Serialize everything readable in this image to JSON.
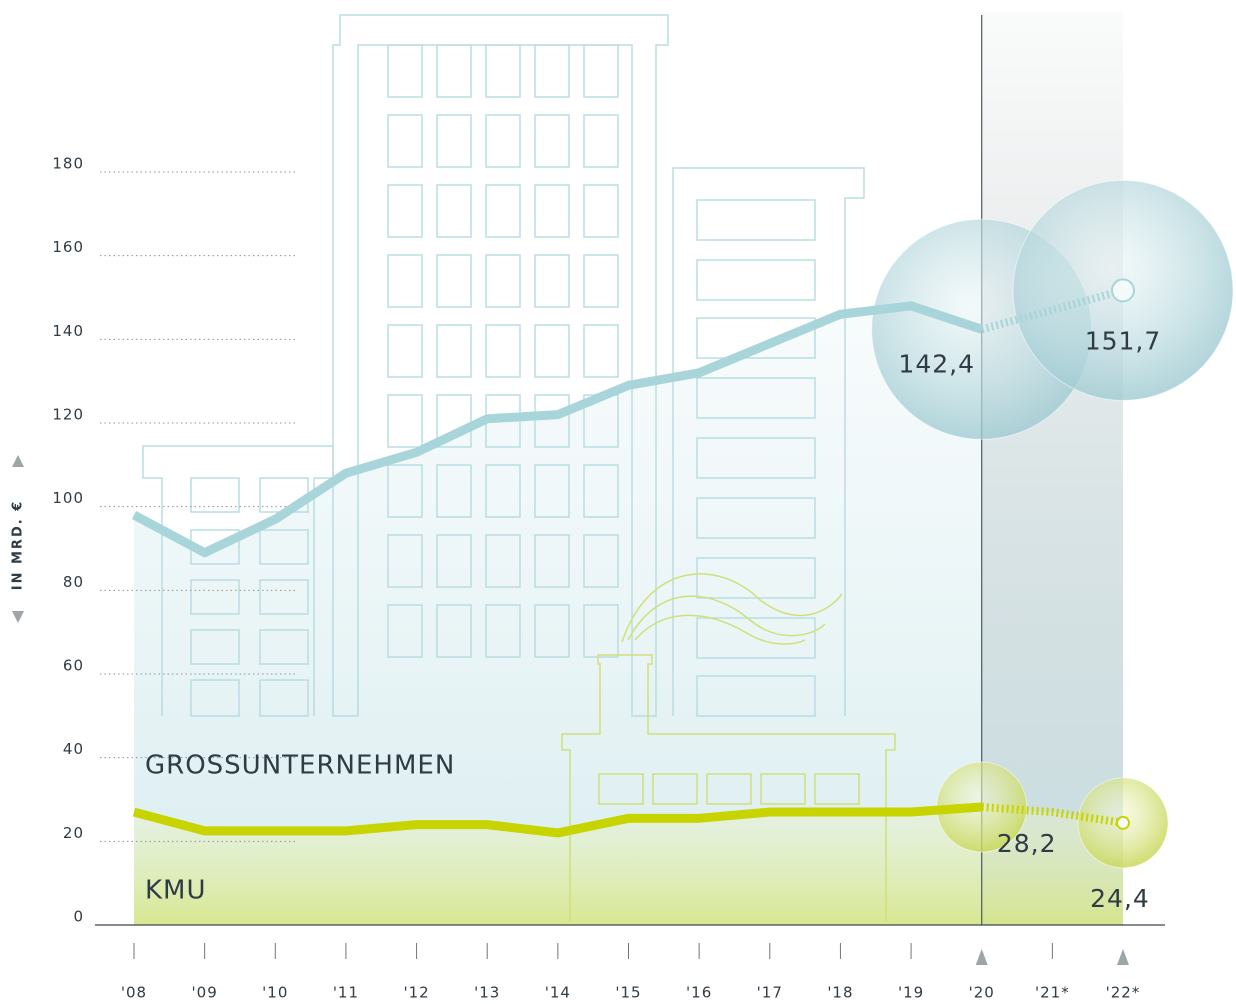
{
  "chart_data": {
    "type": "line",
    "y_label": "IN MRD. €",
    "categories": [
      "'08",
      "'09",
      "'10",
      "'11",
      "'12",
      "'13",
      "'14",
      "'15",
      "'16",
      "'17",
      "'18",
      "'19",
      "'20",
      "'21*",
      "'22*"
    ],
    "series": [
      {
        "name": "GROSSUNTERNEHMEN",
        "color": "#a8d5da",
        "values": [
          98,
          89,
          97,
          108,
          113,
          121,
          122,
          129,
          132,
          139,
          146,
          148,
          142.4,
          147,
          151.7
        ],
        "value_labels": [
          null,
          null,
          null,
          null,
          null,
          null,
          null,
          null,
          null,
          null,
          null,
          null,
          "142,4",
          null,
          "151,7"
        ]
      },
      {
        "name": "KMU",
        "color": "#c8d400",
        "values": [
          27,
          22.5,
          22.5,
          22.5,
          24,
          24,
          22,
          25.5,
          25.5,
          27,
          27,
          27,
          28.2,
          27,
          24.4
        ],
        "value_labels": [
          null,
          null,
          null,
          null,
          null,
          null,
          null,
          null,
          null,
          null,
          null,
          null,
          "28,2",
          null,
          "24,4"
        ]
      }
    ],
    "ylim": [
      0,
      180
    ],
    "yticks": [
      0,
      20,
      40,
      60,
      80,
      100,
      120,
      140,
      160,
      180
    ],
    "grid": true
  }
}
